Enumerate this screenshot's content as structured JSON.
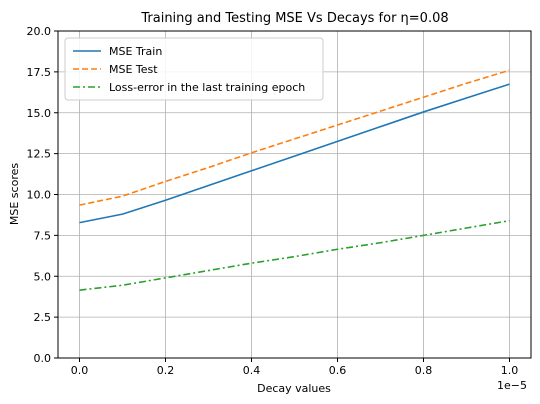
{
  "chart_data": {
    "type": "line",
    "title": "Training and Testing MSE Vs Decays for η=0.08",
    "xlabel": "Decay values",
    "ylabel": "MSE scores",
    "x_offset_text": "1e−5",
    "x": [
      0.0,
      0.1,
      0.2,
      0.3,
      0.4,
      0.5,
      0.6,
      0.7,
      0.8,
      0.9,
      1.0
    ],
    "xlim": [
      -0.05,
      1.05
    ],
    "ylim": [
      0.0,
      20.0
    ],
    "x_ticks": [
      "0.0",
      "0.2",
      "0.4",
      "0.6",
      "0.8",
      "1.0"
    ],
    "y_ticks": [
      "0.0",
      "2.5",
      "5.0",
      "7.5",
      "10.0",
      "12.5",
      "15.0",
      "17.5",
      "20.0"
    ],
    "grid": true,
    "legend_position": "top-left",
    "series": [
      {
        "name": "MSE Train",
        "color": "#1f77b4",
        "style": "solid",
        "values": [
          8.28,
          8.8,
          9.65,
          10.55,
          11.45,
          12.35,
          13.25,
          14.15,
          15.05,
          15.9,
          16.75
        ]
      },
      {
        "name": "MSE Test",
        "color": "#ff7f0e",
        "style": "dashed",
        "values": [
          9.35,
          9.9,
          10.8,
          11.65,
          12.55,
          13.4,
          14.25,
          15.1,
          15.95,
          16.8,
          17.6
        ]
      },
      {
        "name": "Loss-error in the last training epoch",
        "color": "#2ca02c",
        "style": "dashdot",
        "values": [
          4.15,
          4.45,
          4.9,
          5.35,
          5.8,
          6.2,
          6.65,
          7.05,
          7.5,
          7.95,
          8.4
        ]
      }
    ]
  }
}
